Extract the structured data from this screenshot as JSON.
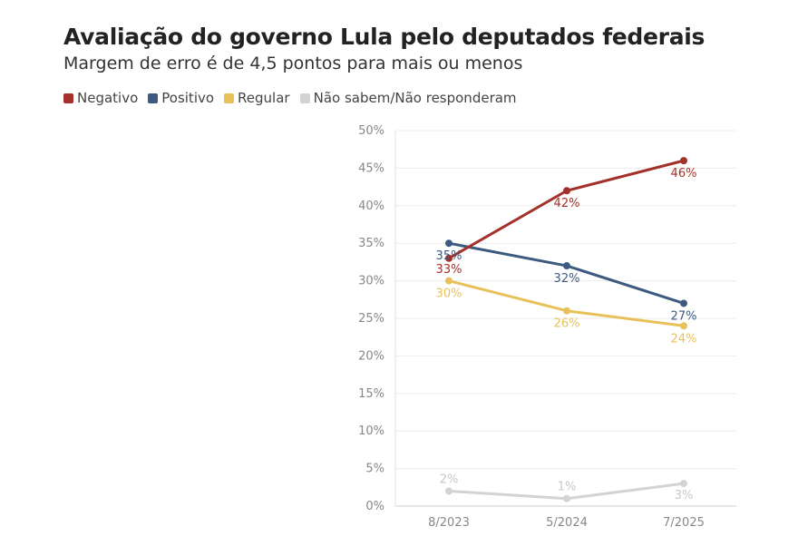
{
  "chart_data": {
    "type": "line",
    "title": "Avaliação do governo Lula pelo deputados federais",
    "subtitle": "Margem de erro é de 4,5 pontos para mais ou menos",
    "categories": [
      "8/2023",
      "5/2024",
      "7/2025"
    ],
    "ylim": [
      0,
      50
    ],
    "yticks": [
      0,
      5,
      10,
      15,
      20,
      25,
      30,
      35,
      40,
      45,
      50
    ],
    "ytick_labels": [
      "0%",
      "5%",
      "10%",
      "15%",
      "20%",
      "25%",
      "30%",
      "35%",
      "40%",
      "45%",
      "50%"
    ],
    "grid": true,
    "legend_position": "top-left",
    "series": [
      {
        "name": "Negativo",
        "color": "#a3302a",
        "values": [
          33,
          42,
          46
        ],
        "labels": [
          "33%",
          "42%",
          "46%"
        ]
      },
      {
        "name": "Positivo",
        "color": "#3d5a80",
        "values": [
          35,
          32,
          27
        ],
        "labels": [
          "35%",
          "32%",
          "27%"
        ]
      },
      {
        "name": "Regular",
        "color": "#e8c15a",
        "values": [
          30,
          26,
          24
        ],
        "labels": [
          "30%",
          "26%",
          "24%"
        ]
      },
      {
        "name": "Não sabem/Não responderam",
        "color": "#d3d3d3",
        "values": [
          2,
          1,
          3
        ],
        "labels": [
          "2%",
          "1%",
          "3%"
        ]
      }
    ]
  }
}
